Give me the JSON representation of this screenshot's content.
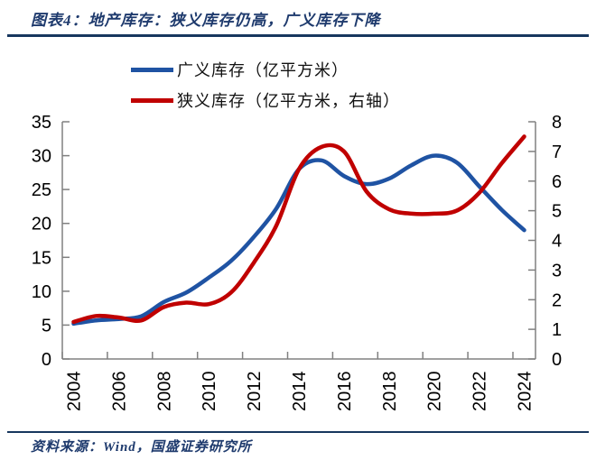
{
  "header": {
    "title": "图表4：地产库存：狭义库存仍高，广义库存下降"
  },
  "footer": {
    "source": "资料来源：Wind，国盛证券研究所"
  },
  "colors": {
    "accent_navy": "#1e3a6d",
    "divider_navy": "#17375e",
    "axis_gray": "#808080",
    "tick_label_black": "#000000",
    "broad_blue": "#1f53a3",
    "narrow_red": "#c00000"
  },
  "chart_data": {
    "type": "line",
    "title": "地产库存：狭义库存仍高，广义库存下降",
    "x": [
      2004,
      2005,
      2006,
      2007,
      2008,
      2009,
      2010,
      2011,
      2012,
      2013,
      2014,
      2015,
      2016,
      2017,
      2018,
      2019,
      2020,
      2021,
      2022,
      2023,
      2024
    ],
    "x_tick_labels": [
      "2004",
      "2006",
      "2008",
      "2010",
      "2012",
      "2014",
      "2016",
      "2018",
      "2020",
      "2022",
      "2024"
    ],
    "series": [
      {
        "name": "广义库存（亿平方米）",
        "axis": "left",
        "color": "#1f53a3",
        "values": [
          5.2,
          5.7,
          5.9,
          6.3,
          8.4,
          9.8,
          12.0,
          14.5,
          18.0,
          22.2,
          28.0,
          29.3,
          27.0,
          25.8,
          26.6,
          28.6,
          30.0,
          29.0,
          25.5,
          22.0,
          19.0
        ]
      },
      {
        "name": "狭义库存（亿平方米，右轴）",
        "axis": "right",
        "color": "#c00000",
        "values": [
          1.25,
          1.45,
          1.4,
          1.3,
          1.75,
          1.9,
          1.85,
          2.25,
          3.25,
          4.5,
          6.4,
          7.15,
          7.0,
          5.65,
          5.05,
          4.9,
          4.9,
          5.0,
          5.6,
          6.6,
          7.5
        ]
      }
    ],
    "left_axis": {
      "min": 0,
      "max": 35,
      "step": 5,
      "tick_labels": [
        "0",
        "5",
        "10",
        "15",
        "20",
        "25",
        "30",
        "35"
      ]
    },
    "right_axis": {
      "min": 0,
      "max": 8,
      "step": 1,
      "tick_labels": [
        "0",
        "1",
        "2",
        "3",
        "4",
        "5",
        "6",
        "7",
        "8"
      ]
    },
    "grid": false,
    "legend_position": "top-center",
    "smoothing": true
  }
}
